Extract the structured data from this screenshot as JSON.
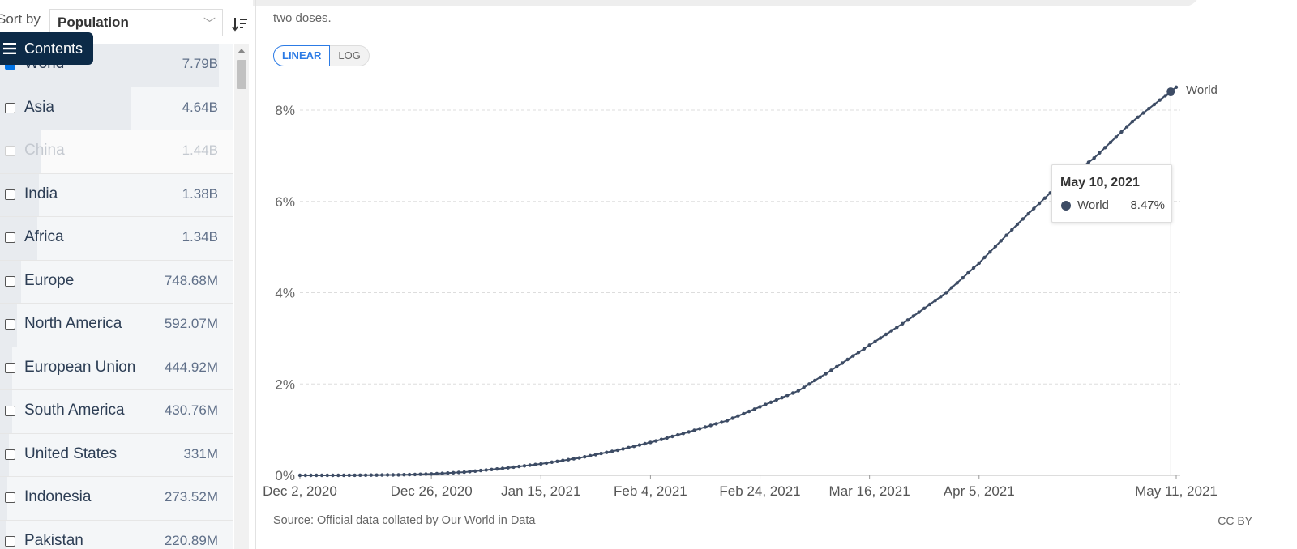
{
  "sort": {
    "label": "Sort by",
    "value": "Population"
  },
  "contents_button": {
    "label": "Contents"
  },
  "entities": [
    {
      "name": "World",
      "value": "7.79B",
      "checked": true,
      "share": 1.0
    },
    {
      "name": "Asia",
      "value": "4.64B",
      "checked": false,
      "share": 0.596
    },
    {
      "name": "China",
      "value": "1.44B",
      "checked": false,
      "share": 0.185,
      "faded": true
    },
    {
      "name": "India",
      "value": "1.38B",
      "checked": false,
      "share": 0.177
    },
    {
      "name": "Africa",
      "value": "1.34B",
      "checked": false,
      "share": 0.172
    },
    {
      "name": "Europe",
      "value": "748.68M",
      "checked": false,
      "share": 0.096
    },
    {
      "name": "North America",
      "value": "592.07M",
      "checked": false,
      "share": 0.076
    },
    {
      "name": "European Union",
      "value": "444.92M",
      "checked": false,
      "share": 0.057
    },
    {
      "name": "South America",
      "value": "430.76M",
      "checked": false,
      "share": 0.055
    },
    {
      "name": "United States",
      "value": "331M",
      "checked": false,
      "share": 0.042
    },
    {
      "name": "Indonesia",
      "value": "273.52M",
      "checked": false,
      "share": 0.035
    },
    {
      "name": "Pakistan",
      "value": "220.89M",
      "checked": false,
      "share": 0.028
    }
  ],
  "subtitle_fragment": "two doses.",
  "scale_toggle": {
    "linear": "LINEAR",
    "log": "LOG",
    "active": "linear"
  },
  "tooltip": {
    "date": "May 10, 2021",
    "series": "World",
    "value": "8.47%"
  },
  "source": "Source: Official data collated by Our World in Data",
  "license": "CC BY",
  "chart_data": {
    "type": "line",
    "x_start": "Dec 2, 2020",
    "x_end": "May 11, 2021",
    "x_ticks": [
      "Dec 2, 2020",
      "Dec 26, 2020",
      "Jan 15, 2021",
      "Feb 4, 2021",
      "Feb 24, 2021",
      "Mar 16, 2021",
      "Apr 5, 2021",
      "May 11, 2021"
    ],
    "y_ticks": [
      "0%",
      "2%",
      "4%",
      "6%",
      "8%"
    ],
    "ylim": [
      0,
      8
    ],
    "grid": true,
    "series": [
      {
        "name": "World",
        "color": "#3d4c65",
        "points": [
          [
            "Dec 2, 2020",
            0.0
          ],
          [
            "Dec 10, 2020",
            0.0
          ],
          [
            "Dec 20, 2020",
            0.01
          ],
          [
            "Dec 26, 2020",
            0.03
          ],
          [
            "Jan 1, 2021",
            0.07
          ],
          [
            "Jan 8, 2021",
            0.15
          ],
          [
            "Jan 15, 2021",
            0.25
          ],
          [
            "Jan 22, 2021",
            0.38
          ],
          [
            "Jan 29, 2021",
            0.55
          ],
          [
            "Feb 4, 2021",
            0.72
          ],
          [
            "Feb 11, 2021",
            0.95
          ],
          [
            "Feb 18, 2021",
            1.2
          ],
          [
            "Feb 24, 2021",
            1.5
          ],
          [
            "Mar 3, 2021",
            1.85
          ],
          [
            "Mar 9, 2021",
            2.3
          ],
          [
            "Mar 16, 2021",
            2.85
          ],
          [
            "Mar 23, 2021",
            3.4
          ],
          [
            "Mar 30, 2021",
            4.0
          ],
          [
            "Apr 5, 2021",
            4.65
          ],
          [
            "Apr 12, 2021",
            5.5
          ],
          [
            "Apr 19, 2021",
            6.3
          ],
          [
            "Apr 26, 2021",
            6.95
          ],
          [
            "May 3, 2021",
            7.75
          ],
          [
            "May 11, 2021",
            8.5
          ]
        ]
      }
    ],
    "end_label": "World"
  }
}
